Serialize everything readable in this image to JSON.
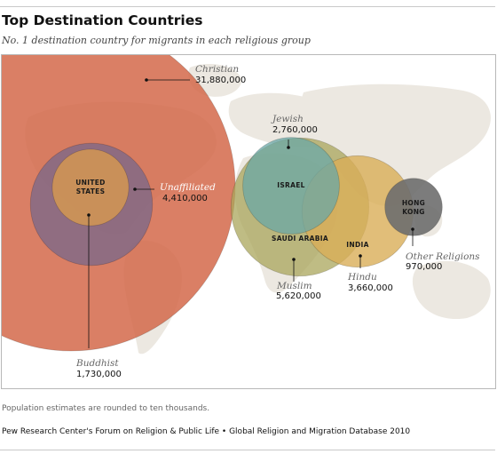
{
  "header": {
    "title": "Top Destination Countries",
    "subtitle": "No. 1 destination country for migrants in each religious group"
  },
  "footer": {
    "note": "Population estimates are rounded to ten thousands.",
    "source": "Pew Research Center's Forum on Religion & Public Life • Global Religion and Migration Database 2010"
  },
  "chart_data": {
    "type": "bubble",
    "title": "Top Destination Countries",
    "subtitle": "No. 1 destination country for migrants in each religious group",
    "series": [
      {
        "group": "Christian",
        "country": "",
        "value": 31880000,
        "value_label": "31,880,000",
        "color": "#d4694a"
      },
      {
        "group": "Unaffiliated",
        "country": "",
        "value": 4410000,
        "value_label": "4,410,000",
        "color": "#836a86"
      },
      {
        "group": "Buddhist",
        "country": "UNITED STATES",
        "value": 1730000,
        "value_label": "1,730,000",
        "color": "#cf9554"
      },
      {
        "group": "Muslim",
        "country": "SAUDI ARABIA",
        "value": 5620000,
        "value_label": "5,620,000",
        "color": "#a9a55b"
      },
      {
        "group": "Hindu",
        "country": "INDIA",
        "value": 3660000,
        "value_label": "3,660,000",
        "color": "#d9ae57"
      },
      {
        "group": "Jewish",
        "country": "ISRAEL",
        "value": 2760000,
        "value_label": "2,760,000",
        "color": "#6aa7a5"
      },
      {
        "group": "Other Religions",
        "country": "HONG KONG",
        "value": 970000,
        "value_label": "970,000",
        "color": "#6e6e6e"
      }
    ]
  }
}
